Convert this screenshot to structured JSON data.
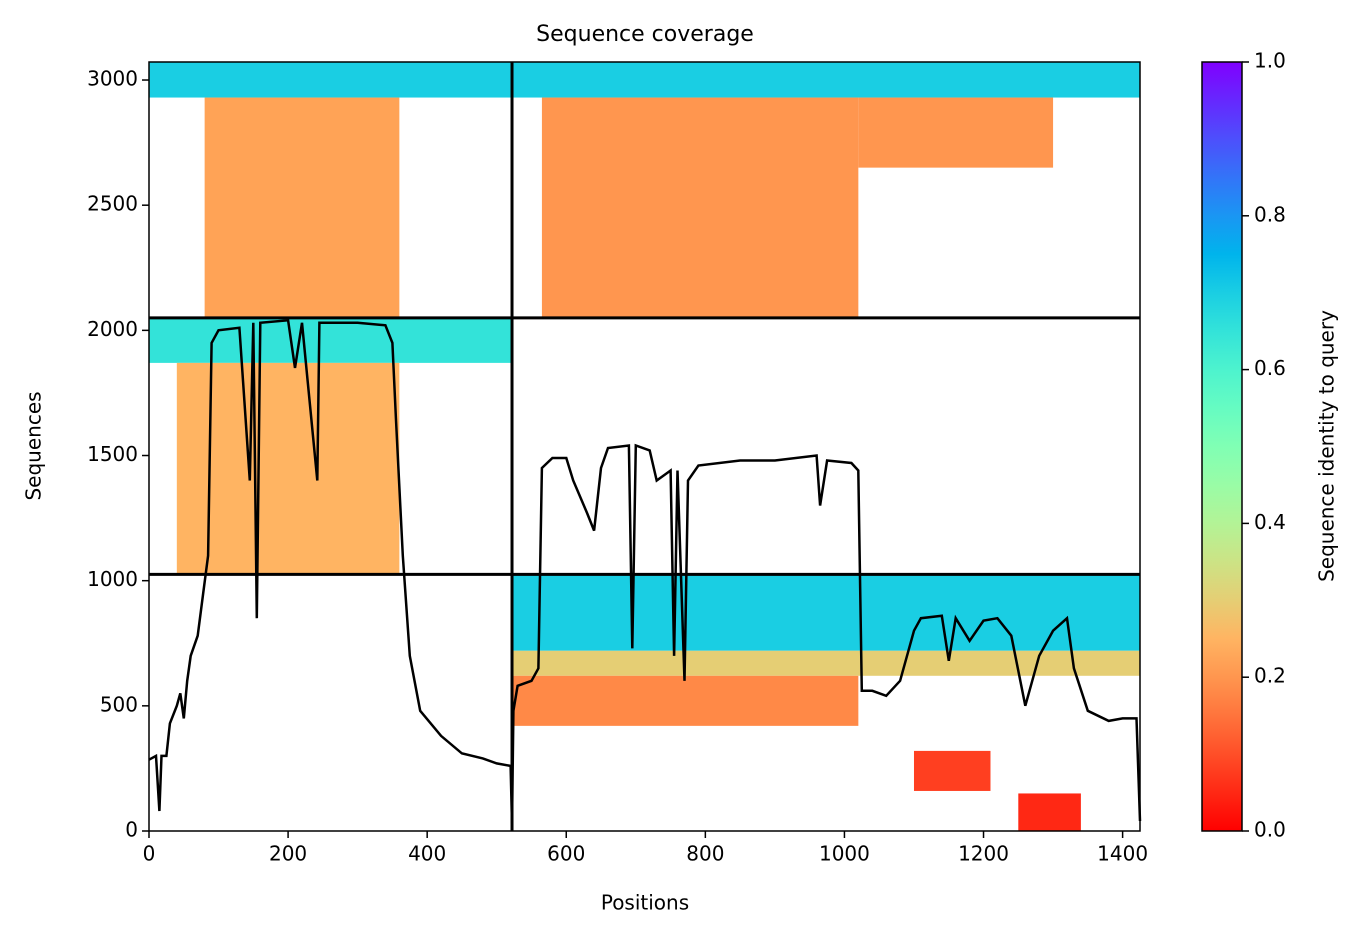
{
  "chart_data": {
    "type": "coverage",
    "title": "Sequence coverage",
    "xlabel": "Positions",
    "ylabel": "Sequences",
    "colorbar_label": "Sequence identity to query",
    "xlim": [
      0,
      1425
    ],
    "ylim": [
      0,
      3072
    ],
    "xticks": [
      0,
      200,
      400,
      600,
      800,
      1000,
      1200,
      1400
    ],
    "yticks": [
      0,
      500,
      1000,
      1500,
      2000,
      2500,
      3000
    ],
    "clim": [
      0,
      1
    ],
    "cticks": [
      {
        "value": 0,
        "label": "0.0"
      },
      0.2,
      0.4,
      0.6,
      0.8,
      {
        "value": 1,
        "label": "1.0"
      }
    ],
    "line_color": "#000000",
    "blocks": [
      {
        "x": [
          0,
          522
        ],
        "y": [
          2930,
          3072
        ],
        "identity": 0.7
      },
      {
        "x": [
          80,
          360
        ],
        "y": [
          2050,
          2930
        ],
        "identity": 0.22
      },
      {
        "x": [
          522,
          1425
        ],
        "y": [
          2930,
          3072
        ],
        "identity": 0.7
      },
      {
        "x": [
          565,
          1020
        ],
        "y": [
          2050,
          2930
        ],
        "identity": 0.2
      },
      {
        "x": [
          1020,
          1300
        ],
        "y": [
          2650,
          2930
        ],
        "identity": 0.2
      },
      {
        "x": [
          0,
          522
        ],
        "y": [
          1870,
          2050
        ],
        "identity": 0.65
      },
      {
        "x": [
          40,
          360
        ],
        "y": [
          1030,
          1870
        ],
        "identity": 0.25
      },
      {
        "x": [
          522,
          1425
        ],
        "y": [
          720,
          1025
        ],
        "identity": 0.7
      },
      {
        "x": [
          522,
          1425
        ],
        "y": [
          620,
          720
        ],
        "identity": 0.3
      },
      {
        "x": [
          522,
          1020
        ],
        "y": [
          420,
          620
        ],
        "identity": 0.18
      },
      {
        "x": [
          1100,
          1210
        ],
        "y": [
          160,
          320
        ],
        "identity": 0.08
      },
      {
        "x": [
          1250,
          1340
        ],
        "y": [
          0,
          150
        ],
        "identity": 0.05
      }
    ],
    "vlines": [
      522
    ],
    "hlines": [
      1025,
      2050
    ],
    "coverage": {
      "x": [
        0,
        10,
        15,
        18,
        25,
        30,
        40,
        45,
        50,
        55,
        60,
        70,
        78,
        85,
        90,
        100,
        130,
        145,
        150,
        155,
        160,
        200,
        210,
        220,
        242,
        245,
        300,
        340,
        350,
        355,
        365,
        375,
        390,
        420,
        450,
        480,
        500,
        520,
        522,
        524,
        530,
        550,
        560,
        565,
        580,
        600,
        610,
        630,
        640,
        650,
        660,
        690,
        695,
        700,
        720,
        730,
        750,
        755,
        760,
        770,
        775,
        790,
        850,
        900,
        960,
        965,
        975,
        1010,
        1020,
        1025,
        1040,
        1060,
        1080,
        1100,
        1110,
        1140,
        1150,
        1160,
        1180,
        1200,
        1220,
        1240,
        1260,
        1280,
        1300,
        1320,
        1330,
        1350,
        1380,
        1400,
        1420,
        1425
      ],
      "y": [
        285,
        300,
        80,
        300,
        300,
        430,
        500,
        550,
        450,
        600,
        700,
        780,
        950,
        1100,
        1950,
        2000,
        2010,
        1400,
        2030,
        850,
        2030,
        2040,
        1850,
        2030,
        1400,
        2030,
        2030,
        2020,
        1950,
        1650,
        1100,
        700,
        480,
        380,
        310,
        290,
        270,
        260,
        30,
        480,
        580,
        600,
        650,
        1450,
        1490,
        1490,
        1400,
        1270,
        1200,
        1450,
        1530,
        1540,
        730,
        1540,
        1520,
        1400,
        1440,
        700,
        1440,
        600,
        1400,
        1460,
        1480,
        1480,
        1500,
        1300,
        1480,
        1470,
        1440,
        560,
        560,
        540,
        600,
        800,
        850,
        860,
        680,
        850,
        760,
        840,
        850,
        780,
        500,
        700,
        800,
        850,
        650,
        480,
        440,
        450,
        450,
        40
      ]
    }
  }
}
